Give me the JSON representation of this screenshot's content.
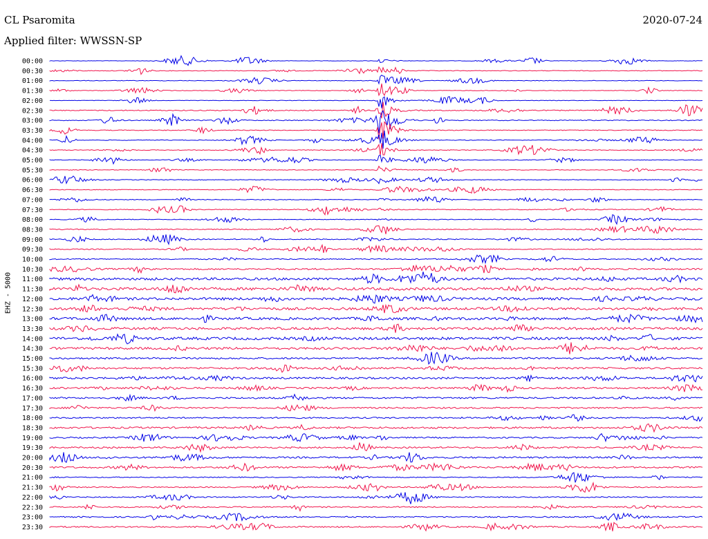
{
  "header": {
    "station": "CL Psaromita",
    "date": "2020-07-24",
    "filter_text": "Applied filter: WWSSN-SP"
  },
  "channel_label": "EHZ - 5000",
  "colors": {
    "odd_trace": "#0000e6",
    "even_trace": "#f0144b",
    "background": "#ffffff"
  },
  "chart_data": {
    "type": "line",
    "title": "",
    "xlabel": "",
    "ylabel": "EHZ - 5000",
    "grid": false,
    "legend": "none",
    "row_labels": [
      "00:00",
      "00:30",
      "01:00",
      "01:30",
      "02:00",
      "02:30",
      "03:00",
      "03:30",
      "04:00",
      "04:30",
      "05:00",
      "05:30",
      "06:00",
      "06:30",
      "07:00",
      "07:30",
      "08:00",
      "08:30",
      "09:00",
      "09:30",
      "10:00",
      "10:30",
      "11:00",
      "11:30",
      "12:00",
      "12:30",
      "13:00",
      "13:30",
      "14:00",
      "14:30",
      "15:00",
      "15:30",
      "16:00",
      "16:30",
      "17:00",
      "17:30",
      "18:00",
      "18:30",
      "19:00",
      "19:30",
      "20:00",
      "20:30",
      "21:00",
      "21:30",
      "22:00",
      "22:30",
      "23:00",
      "23:30"
    ],
    "trace_color_order": [
      "blue",
      "red"
    ],
    "noise_level": [
      0.15,
      0.2,
      0.18,
      0.18,
      0.15,
      0.3,
      0.28,
      0.25,
      0.2,
      0.22,
      0.2,
      0.2,
      0.2,
      0.22,
      0.22,
      0.25,
      0.22,
      0.3,
      0.3,
      0.3,
      0.35,
      0.5,
      0.8,
      0.9,
      0.85,
      0.8,
      0.85,
      0.8,
      0.9,
      0.75,
      0.55,
      0.6,
      0.6,
      0.55,
      0.55,
      0.5,
      0.45,
      0.6,
      0.45,
      0.5,
      0.55,
      0.55,
      0.3,
      0.35,
      0.35,
      0.4,
      0.4,
      0.45
    ],
    "event": {
      "row_start": 0,
      "row_end": 18,
      "peak_row": 6,
      "time_fraction": 0.505
    }
  }
}
